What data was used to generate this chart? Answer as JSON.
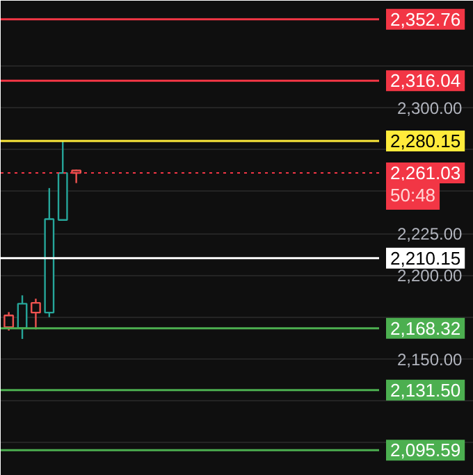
{
  "chart_data": {
    "type": "candlestick",
    "categories": [
      null,
      null,
      null,
      null,
      null,
      null,
      null,
      null,
      null,
      null,
      null,
      null,
      null,
      null,
      null,
      null,
      null,
      null,
      null,
      null,
      null,
      null,
      null,
      null,
      null,
      null,
      null,
      null
    ],
    "ohlc": [
      [
        2176,
        2178,
        2167,
        2169
      ],
      [
        2168.5,
        2188,
        2162,
        2183
      ],
      [
        2183.5,
        2186,
        2167.7,
        2177.7
      ],
      [
        2177.7,
        2252,
        2175,
        2233.5
      ],
      [
        2233,
        2280,
        2233,
        2261
      ],
      [
        2262.5,
        2263,
        2255,
        2261.03
      ],
      null,
      null,
      null,
      null,
      null,
      null,
      null,
      null,
      null,
      null,
      null,
      null,
      null,
      null,
      null,
      null,
      null,
      null,
      null,
      null,
      null,
      null
    ],
    "colors": [
      "#ef5350",
      "#26a69a",
      "#ef5350",
      "#26a69a",
      "#26a69a",
      "#ef5350",
      null,
      null,
      null,
      null,
      null,
      null,
      null,
      null,
      null,
      null,
      null,
      null,
      null,
      null,
      null,
      null,
      null,
      null,
      null,
      null,
      null,
      null
    ],
    "ylim": [
      2080.4,
      2363.8
    ],
    "yticks": [
      {
        "value": 2100,
        "label": null
      },
      {
        "value": 2125,
        "label": null
      },
      {
        "value": 2150,
        "label": "2,150.00"
      },
      {
        "value": 2175,
        "label": null
      },
      {
        "value": 2200,
        "label": "2,200.00"
      },
      {
        "value": 2225,
        "label": "2,225.00"
      },
      {
        "value": 2250,
        "label": null
      },
      {
        "value": 2275,
        "label": null
      },
      {
        "value": 2300,
        "label": "2,300.00"
      },
      {
        "value": 2325,
        "label": null
      }
    ],
    "grid": "y",
    "tick_labels": "y",
    "ref_lines": [
      {
        "axis": "y",
        "value": 2352.76,
        "label": "2,352.76",
        "color": "#f23645",
        "line_style": "solid"
      },
      {
        "axis": "y",
        "value": 2316.04,
        "label": "2,316.04",
        "color": "#f23645",
        "line_style": "solid"
      },
      {
        "axis": "y",
        "value": 2280.15,
        "label": "2,280.15",
        "color": "#ffeb3b",
        "line_style": "solid"
      },
      {
        "axis": "y",
        "value": 2261.03,
        "label": "2,261.03",
        "color": "#f23645",
        "line_style": "dotted"
      },
      {
        "axis": "y",
        "value": 2210.15,
        "label": "2,210.15",
        "color": "#ffffff",
        "line_style": "solid"
      },
      {
        "axis": "y",
        "value": 2168.32,
        "label": "2,168.32",
        "color": "#4caf50",
        "line_style": "solid"
      },
      {
        "axis": "y",
        "value": 2131.5,
        "label": "2,131.50",
        "color": "#4caf50",
        "line_style": "solid"
      },
      {
        "axis": "y",
        "value": 2095.59,
        "label": "2,095.59",
        "color": "#4caf50",
        "line_style": "solid"
      }
    ],
    "annotations": [
      "50:48"
    ]
  }
}
